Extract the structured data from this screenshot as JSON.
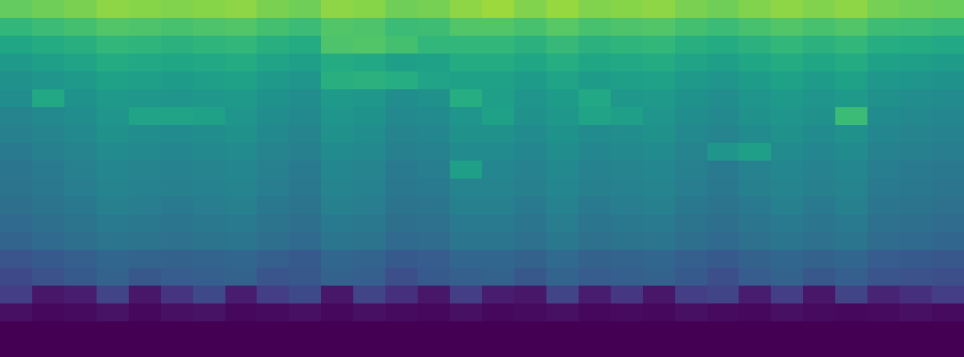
{
  "chart_data": {
    "type": "heatmap",
    "color": "viridis",
    "zlim": [
      0,
      100
    ],
    "tick_labels": false,
    "cells": [
      [
        76,
        78,
        80,
        83,
        82,
        81,
        82,
        83,
        80,
        78,
        83,
        82,
        78,
        79,
        83,
        85,
        81,
        84,
        81,
        82,
        83,
        80,
        78,
        81,
        83,
        81,
        83,
        79,
        78,
        77
      ],
      [
        66,
        68,
        70,
        73,
        72,
        71,
        72,
        73,
        70,
        68,
        73,
        72,
        68,
        69,
        73,
        73,
        71,
        74,
        71,
        72,
        73,
        70,
        68,
        71,
        73,
        71,
        73,
        69,
        68,
        67
      ],
      [
        59,
        61,
        63,
        66,
        65,
        64,
        65,
        66,
        63,
        61,
        72,
        73,
        70,
        66,
        66,
        66,
        64,
        67,
        64,
        65,
        66,
        63,
        61,
        64,
        66,
        64,
        66,
        62,
        61,
        60
      ],
      [
        54,
        56,
        58,
        61,
        60,
        59,
        60,
        61,
        58,
        56,
        61,
        60,
        56,
        57,
        61,
        61,
        59,
        62,
        59,
        60,
        61,
        58,
        56,
        59,
        61,
        59,
        61,
        57,
        56,
        55
      ],
      [
        50,
        52,
        54,
        57,
        56,
        55,
        56,
        57,
        54,
        52,
        63,
        64,
        62,
        58,
        57,
        57,
        55,
        58,
        55,
        56,
        57,
        54,
        52,
        55,
        57,
        55,
        57,
        53,
        52,
        51
      ],
      [
        49,
        60,
        51,
        54,
        53,
        52,
        53,
        54,
        51,
        49,
        54,
        53,
        49,
        50,
        62,
        56,
        52,
        55,
        60,
        53,
        54,
        51,
        49,
        52,
        54,
        52,
        54,
        50,
        49,
        48
      ],
      [
        45,
        47,
        49,
        52,
        58,
        58,
        57,
        52,
        49,
        47,
        52,
        51,
        47,
        48,
        52,
        57,
        50,
        53,
        58,
        56,
        52,
        49,
        47,
        50,
        52,
        50,
        68,
        48,
        47,
        46
      ],
      [
        43,
        45,
        47,
        50,
        49,
        48,
        49,
        50,
        47,
        45,
        50,
        49,
        45,
        46,
        50,
        50,
        48,
        51,
        48,
        49,
        50,
        47,
        45,
        48,
        50,
        48,
        50,
        46,
        45,
        44
      ],
      [
        41,
        43,
        45,
        48,
        47,
        46,
        47,
        48,
        45,
        43,
        48,
        47,
        43,
        44,
        48,
        48,
        46,
        49,
        46,
        47,
        48,
        45,
        52,
        56,
        48,
        46,
        48,
        44,
        43,
        42
      ],
      [
        39,
        41,
        43,
        46,
        45,
        44,
        45,
        46,
        43,
        41,
        46,
        45,
        41,
        42,
        56,
        46,
        44,
        47,
        44,
        45,
        46,
        43,
        41,
        44,
        46,
        44,
        46,
        42,
        41,
        40
      ],
      [
        38,
        40,
        42,
        45,
        44,
        43,
        44,
        45,
        42,
        40,
        45,
        44,
        40,
        41,
        45,
        45,
        43,
        46,
        43,
        44,
        45,
        42,
        40,
        43,
        45,
        43,
        45,
        41,
        40,
        39
      ],
      [
        36,
        38,
        40,
        43,
        42,
        41,
        42,
        43,
        40,
        38,
        43,
        42,
        38,
        39,
        43,
        43,
        41,
        44,
        41,
        42,
        43,
        40,
        38,
        41,
        43,
        41,
        43,
        39,
        38,
        37
      ],
      [
        34,
        36,
        38,
        41,
        40,
        39,
        40,
        41,
        38,
        36,
        41,
        40,
        36,
        37,
        41,
        41,
        39,
        42,
        39,
        40,
        41,
        38,
        36,
        39,
        41,
        39,
        41,
        37,
        36,
        35
      ],
      [
        32,
        34,
        36,
        39,
        38,
        37,
        38,
        39,
        36,
        34,
        39,
        38,
        34,
        35,
        39,
        39,
        37,
        40,
        37,
        38,
        39,
        36,
        34,
        37,
        39,
        37,
        39,
        35,
        34,
        33
      ],
      [
        26,
        28,
        30,
        33,
        32,
        31,
        32,
        33,
        30,
        28,
        33,
        32,
        28,
        29,
        33,
        33,
        31,
        34,
        31,
        32,
        33,
        30,
        28,
        31,
        33,
        31,
        33,
        29,
        28,
        27
      ],
      [
        22,
        25,
        28,
        31,
        27,
        29,
        30,
        31,
        26,
        27,
        31,
        30,
        24,
        28,
        30,
        31,
        27,
        32,
        29,
        30,
        31,
        28,
        24,
        29,
        31,
        27,
        30,
        26,
        25,
        24
      ],
      [
        18,
        6,
        8,
        20,
        6,
        15,
        22,
        8,
        18,
        22,
        6,
        20,
        14,
        6,
        18,
        8,
        6,
        20,
        8,
        16,
        6,
        18,
        20,
        8,
        18,
        6,
        20,
        10,
        14,
        18
      ],
      [
        4,
        2,
        3,
        5,
        2,
        4,
        5,
        2,
        3,
        4,
        2,
        4,
        3,
        2,
        4,
        2,
        3,
        4,
        2,
        3,
        2,
        4,
        3,
        2,
        4,
        3,
        2,
        3,
        4,
        3
      ],
      [
        0,
        0,
        0,
        0,
        0,
        0,
        0,
        0,
        0,
        0,
        0,
        0,
        0,
        0,
        0,
        0,
        0,
        0,
        0,
        0,
        0,
        0,
        0,
        0,
        0,
        0,
        0,
        0,
        0,
        0
      ],
      [
        0,
        0,
        0,
        0,
        0,
        0,
        0,
        0,
        0,
        0,
        0,
        0,
        0,
        0,
        0,
        0,
        0,
        0,
        0,
        0,
        0,
        0,
        0,
        0,
        0,
        0,
        0,
        0,
        0,
        0
      ]
    ]
  }
}
